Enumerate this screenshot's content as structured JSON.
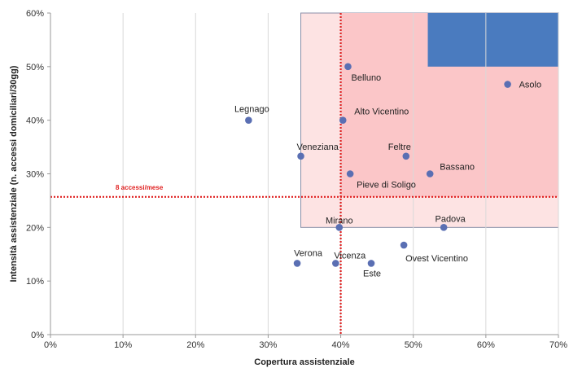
{
  "chart_data": {
    "type": "scatter",
    "xlabel": "Copertura assistenziale",
    "ylabel": "Intensità assistenziale (n. accessi domiciliari/30gg)",
    "xlim": [
      0,
      70
    ],
    "ylim": [
      0,
      60
    ],
    "x_ticks": [
      "0%",
      "10%",
      "20%",
      "30%",
      "40%",
      "50%",
      "60%",
      "70%"
    ],
    "y_ticks": [
      "0%",
      "10%",
      "20%",
      "30%",
      "40%",
      "50%",
      "60%"
    ],
    "grid": "vertical",
    "points": [
      {
        "label": "Belluno",
        "x": 41.0,
        "y": 50.0
      },
      {
        "label": "Asolo",
        "x": 63.0,
        "y": 46.7
      },
      {
        "label": "Legnago",
        "x": 27.3,
        "y": 40.0
      },
      {
        "label": "Alto Vicentino",
        "x": 40.3,
        "y": 40.0
      },
      {
        "label": "Veneziana",
        "x": 34.5,
        "y": 33.3
      },
      {
        "label": "Feltre",
        "x": 49.0,
        "y": 33.3
      },
      {
        "label": "Bassano",
        "x": 52.3,
        "y": 30.0
      },
      {
        "label": "Pieve di Soligo",
        "x": 41.3,
        "y": 30.0
      },
      {
        "label": "Mirano",
        "x": 39.8,
        "y": 20.0
      },
      {
        "label": "Padova",
        "x": 54.2,
        "y": 20.0
      },
      {
        "label": "Ovest Vicentino",
        "x": 48.7,
        "y": 16.7
      },
      {
        "label": "Verona",
        "x": 34.0,
        "y": 13.3
      },
      {
        "label": "Vicenza",
        "x": 39.3,
        "y": 13.3
      },
      {
        "label": "Este",
        "x": 44.2,
        "y": 13.3
      }
    ],
    "reference_lines": {
      "x": 40.0,
      "y": 25.7,
      "y_label": "8 accessi/mese"
    },
    "regions": [
      {
        "x": [
          34.5,
          70
        ],
        "y": [
          20,
          60
        ],
        "color": "#fde3e3"
      },
      {
        "x": [
          40,
          70
        ],
        "y": [
          25.7,
          60
        ],
        "color": "#fbc6c8"
      },
      {
        "x": [
          52,
          70
        ],
        "y": [
          50,
          60
        ],
        "color": "#4a7bbf"
      }
    ],
    "colors": {
      "point": "#5a6fb3",
      "reference_line": "#e02020",
      "grid": "#d9d9d9"
    }
  }
}
